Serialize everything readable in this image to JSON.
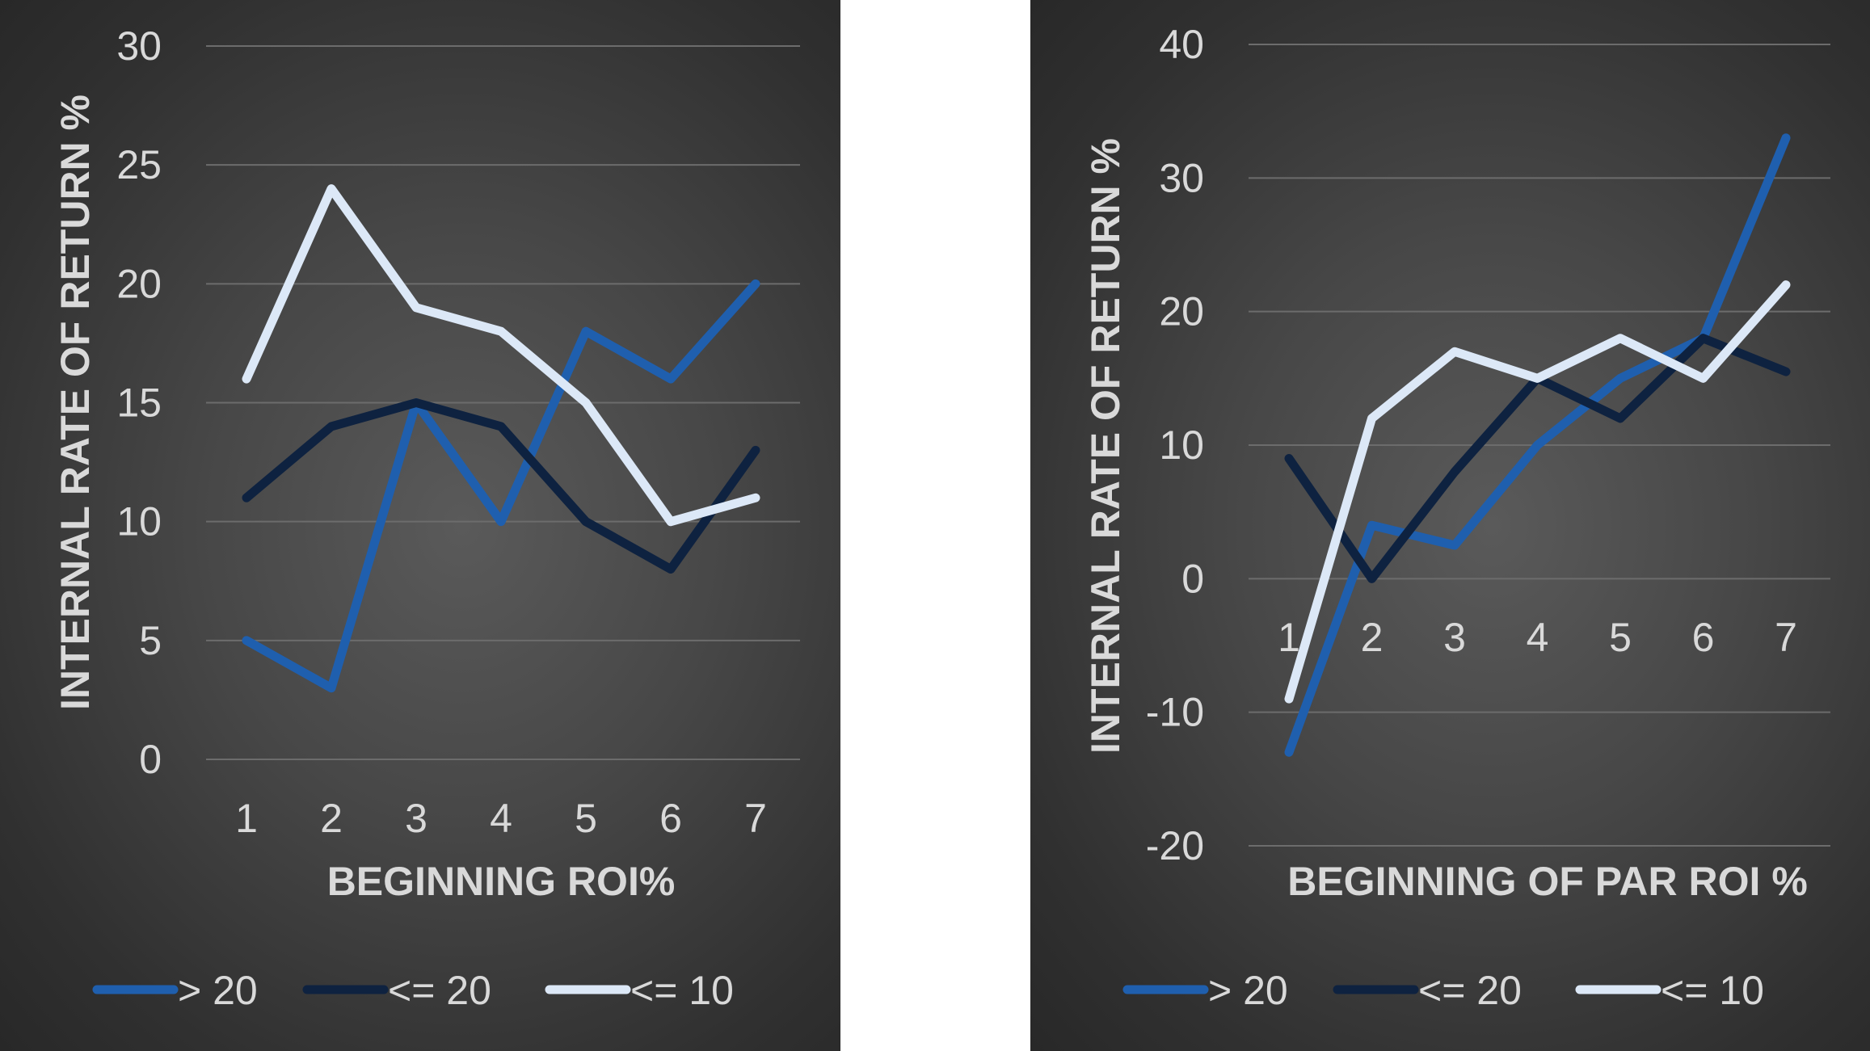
{
  "colors": {
    "series_gt20": "#1f5fae",
    "series_le20": "#0e2240",
    "series_le10": "#dce8f7",
    "text": "#d9d9d9",
    "grid": "#6c6c6c"
  },
  "chart_data": [
    {
      "type": "line",
      "title": "",
      "xlabel": "BEGINNING ROI%",
      "ylabel": "INTERNAL RATE OF RETURN %",
      "categories": [
        "1",
        "2",
        "3",
        "4",
        "5",
        "6",
        "7"
      ],
      "ylim": [
        0,
        30
      ],
      "yticks": [
        "0",
        "5",
        "10",
        "15",
        "20",
        "25",
        "30"
      ],
      "grid": true,
      "legend": "bottom",
      "series": [
        {
          "name": "> 20",
          "color": "#1f5fae",
          "values": [
            5,
            3,
            15,
            10,
            18,
            16,
            20
          ]
        },
        {
          "name": "<= 20",
          "color": "#0e2240",
          "values": [
            11,
            14,
            15,
            14,
            10,
            8,
            13
          ]
        },
        {
          "name": "<= 10",
          "color": "#dce8f7",
          "values": [
            16,
            24,
            19,
            18,
            15,
            10,
            11
          ]
        }
      ]
    },
    {
      "type": "line",
      "title": "",
      "xlabel": "BEGINNING OF PAR ROI %",
      "ylabel": "INTERNAL RATE OF RETURN %",
      "categories": [
        "1",
        "2",
        "3",
        "4",
        "5",
        "6",
        "7"
      ],
      "ylim": [
        -20,
        40
      ],
      "yticks": [
        "-20",
        "-10",
        "0",
        "10",
        "20",
        "30",
        "40"
      ],
      "grid": true,
      "legend": "bottom",
      "series": [
        {
          "name": "> 20",
          "color": "#1f5fae",
          "values": [
            -13,
            4,
            2.5,
            10,
            15,
            18,
            33
          ]
        },
        {
          "name": "<= 20",
          "color": "#0e2240",
          "values": [
            9,
            0,
            8,
            15,
            12,
            18,
            15.5
          ]
        },
        {
          "name": "<= 10",
          "color": "#dce8f7",
          "values": [
            -9,
            12,
            17,
            15,
            18,
            15,
            22
          ]
        }
      ]
    }
  ]
}
